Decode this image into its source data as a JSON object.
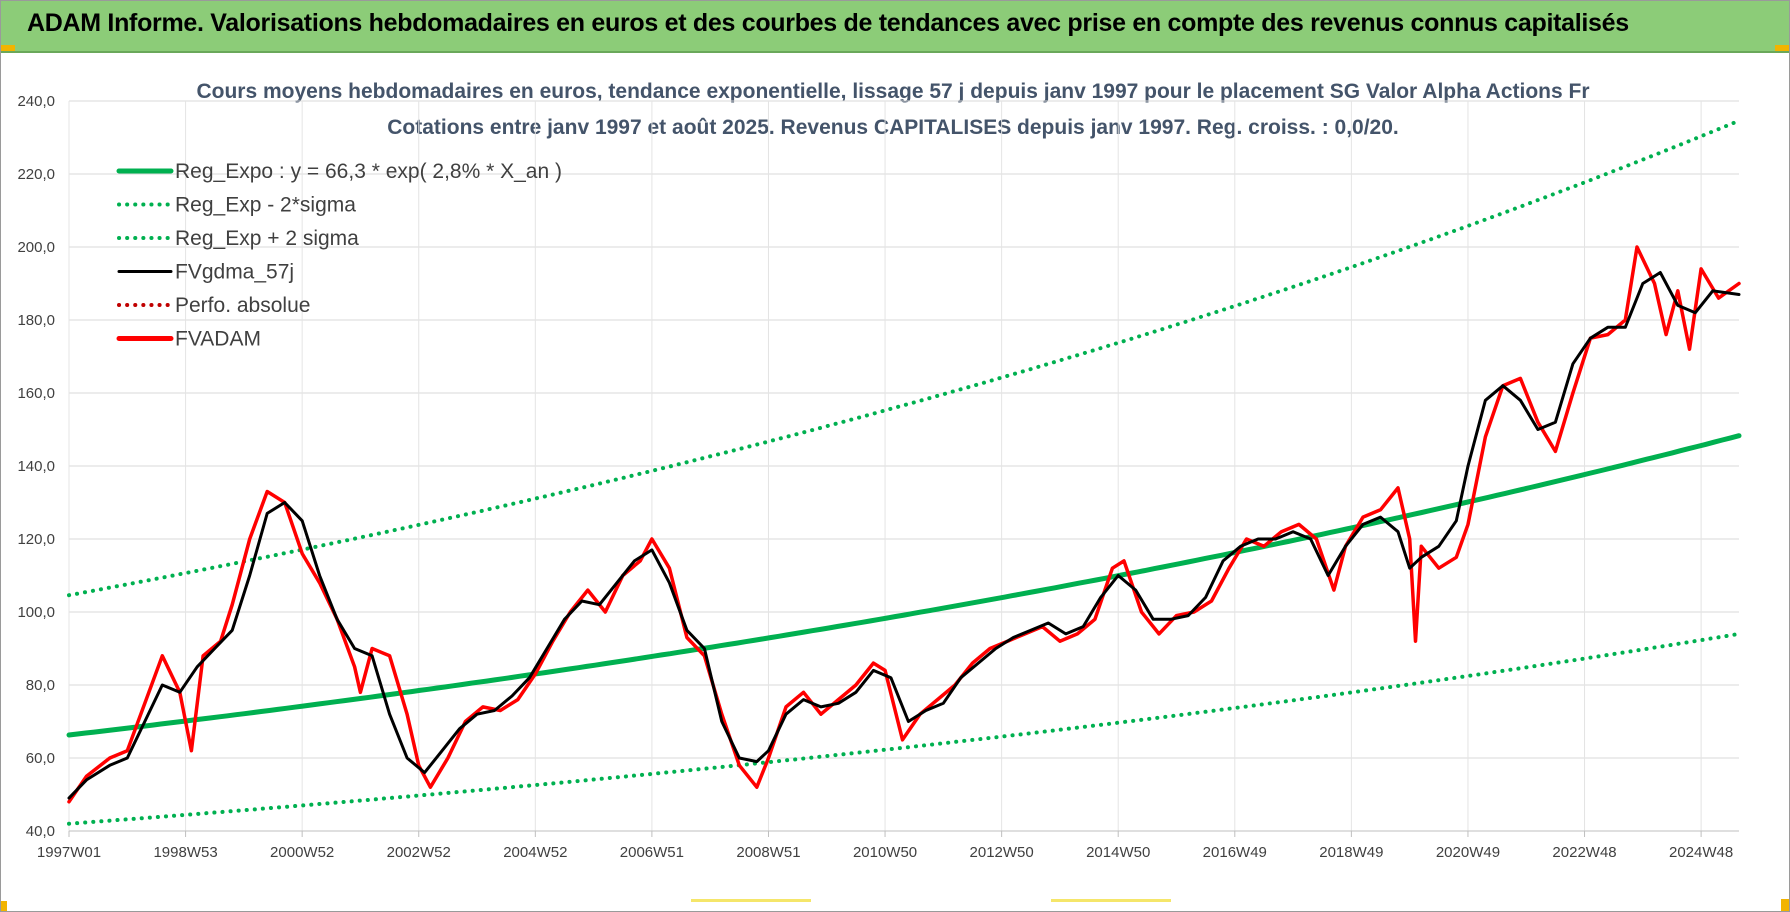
{
  "banner": {
    "title": "ADAM Informe. Valorisations hebdomadaires en euros et des courbes de tendances avec prise en compte des revenus connus capitalisés"
  },
  "colors": {
    "banner": "#8ccc78",
    "reg_expo": "#00b050",
    "fvgdma": "#000000",
    "fvadam": "#ff0000",
    "perfo": "#c00000",
    "accent_corner": "#f2b400"
  },
  "chart_data": {
    "type": "line",
    "title": "Cours moyens hebdomadaires en euros, tendance exponentielle, lissage 57 j depuis janv 1997 pour le placement SG Valor Alpha Actions Fr",
    "subtitle": "Cotations entre janv 1997 et août 2025.  Revenus CAPITALISES depuis janv 1997. Reg. croiss. : 0,0/20.",
    "xlabel": "",
    "ylabel": "",
    "ylim": [
      40,
      240
    ],
    "yticks": [
      "40,0",
      "60,0",
      "80,0",
      "100,0",
      "120,0",
      "140,0",
      "160,0",
      "180,0",
      "200,0",
      "220,0",
      "240,0"
    ],
    "xrange": [
      1997.0,
      2025.65
    ],
    "xticks": [
      {
        "label": "1997W01",
        "x": 1997.0
      },
      {
        "label": "1998W53",
        "x": 1999.0
      },
      {
        "label": "2000W52",
        "x": 2001.0
      },
      {
        "label": "2002W52",
        "x": 2003.0
      },
      {
        "label": "2004W52",
        "x": 2005.0
      },
      {
        "label": "2006W51",
        "x": 2007.0
      },
      {
        "label": "2008W51",
        "x": 2009.0
      },
      {
        "label": "2010W50",
        "x": 2011.0
      },
      {
        "label": "2012W50",
        "x": 2013.0
      },
      {
        "label": "2014W50",
        "x": 2015.0
      },
      {
        "label": "2016W49",
        "x": 2017.0
      },
      {
        "label": "2018W49",
        "x": 2019.0
      },
      {
        "label": "2020W49",
        "x": 2021.0
      },
      {
        "label": "2022W48",
        "x": 2023.0
      },
      {
        "label": "2024W48",
        "x": 2025.0
      }
    ],
    "grid": true,
    "legend_position": "top-left",
    "series": [
      {
        "name": "Reg_Expo : y = 66,3 * exp( 2,8% *  X_an )",
        "style": "solid-thick",
        "color": "#00b050",
        "x": [
          1997.0,
          1999.0,
          2001.0,
          2003.0,
          2005.0,
          2007.0,
          2009.0,
          2011.0,
          2013.0,
          2015.0,
          2017.0,
          2019.0,
          2021.0,
          2023.0,
          2025.65
        ],
        "values": [
          66.3,
          70.1,
          74.2,
          78.5,
          83.0,
          87.8,
          92.9,
          98.2,
          103.9,
          109.9,
          116.2,
          122.9,
          130.0,
          137.5,
          148.3
        ]
      },
      {
        "name": "Reg_Exp - 2*sigma",
        "style": "dotted",
        "color": "#00b050",
        "x": [
          1997.0,
          1999.0,
          2001.0,
          2003.0,
          2005.0,
          2007.0,
          2009.0,
          2011.0,
          2013.0,
          2015.0,
          2017.0,
          2019.0,
          2021.0,
          2023.0,
          2025.65
        ],
        "values": [
          42.0,
          44.4,
          47.0,
          49.7,
          52.5,
          55.6,
          58.8,
          62.2,
          65.7,
          69.5,
          73.5,
          77.8,
          82.3,
          87.0,
          94.0
        ]
      },
      {
        "name": "Reg_Exp + 2 sigma",
        "style": "dotted",
        "color": "#00b050",
        "x": [
          1997.0,
          1999.0,
          2001.0,
          2003.0,
          2005.0,
          2007.0,
          2009.0,
          2011.0,
          2013.0,
          2015.0,
          2017.0,
          2019.0,
          2021.0,
          2023.0,
          2025.65
        ],
        "values": [
          104.6,
          110.6,
          117.0,
          123.8,
          130.9,
          138.5,
          146.5,
          154.9,
          163.8,
          173.3,
          183.3,
          193.9,
          205.1,
          216.9,
          234.6
        ]
      },
      {
        "name": "FVgdma_57j",
        "style": "solid",
        "color": "#000000",
        "x": [
          1997.0,
          1997.3,
          1997.7,
          1998.0,
          1998.3,
          1998.6,
          1998.9,
          1999.2,
          1999.5,
          1999.8,
          2000.1,
          2000.4,
          2000.7,
          2001.0,
          2001.3,
          2001.6,
          2001.9,
          2002.2,
          2002.5,
          2002.8,
          2003.1,
          2003.4,
          2003.7,
          2004.0,
          2004.3,
          2004.6,
          2004.9,
          2005.2,
          2005.5,
          2005.8,
          2006.1,
          2006.4,
          2006.7,
          2007.0,
          2007.3,
          2007.6,
          2007.9,
          2008.2,
          2008.5,
          2008.8,
          2009.0,
          2009.3,
          2009.6,
          2009.9,
          2010.2,
          2010.5,
          2010.8,
          2011.1,
          2011.4,
          2011.7,
          2012.0,
          2012.3,
          2012.6,
          2012.9,
          2013.2,
          2013.5,
          2013.8,
          2014.1,
          2014.4,
          2014.7,
          2015.0,
          2015.3,
          2015.6,
          2015.9,
          2016.2,
          2016.5,
          2016.8,
          2017.1,
          2017.4,
          2017.7,
          2018.0,
          2018.3,
          2018.6,
          2018.9,
          2019.2,
          2019.5,
          2019.8,
          2020.0,
          2020.2,
          2020.5,
          2020.8,
          2021.0,
          2021.3,
          2021.6,
          2021.9,
          2022.2,
          2022.5,
          2022.8,
          2023.1,
          2023.4,
          2023.7,
          2024.0,
          2024.3,
          2024.6,
          2024.9,
          2025.2,
          2025.65
        ],
        "values": [
          49,
          54,
          58,
          60,
          70,
          80,
          78,
          85,
          90,
          95,
          110,
          127,
          130,
          125,
          110,
          98,
          90,
          88,
          72,
          60,
          56,
          62,
          68,
          72,
          73,
          77,
          82,
          90,
          98,
          103,
          102,
          108,
          114,
          117,
          108,
          95,
          90,
          70,
          60,
          59,
          62,
          72,
          76,
          74,
          75,
          78,
          84,
          82,
          70,
          73,
          75,
          82,
          86,
          90,
          93,
          95,
          97,
          94,
          96,
          104,
          110,
          106,
          98,
          98,
          99,
          104,
          114,
          118,
          120,
          120,
          122,
          120,
          110,
          118,
          124,
          126,
          122,
          112,
          115,
          118,
          125,
          140,
          158,
          162,
          158,
          150,
          152,
          168,
          175,
          178,
          178,
          190,
          193,
          184,
          182,
          188,
          187
        ]
      },
      {
        "name": "Perfo. absolue",
        "style": "dotted",
        "color": "#c00000",
        "x": [],
        "values": []
      },
      {
        "name": "FVADAM",
        "style": "solid-thick",
        "color": "#ff0000",
        "x": [
          1997.0,
          1997.3,
          1997.7,
          1998.0,
          1998.3,
          1998.6,
          1998.9,
          1999.1,
          1999.3,
          1999.6,
          1999.8,
          2000.1,
          2000.4,
          2000.7,
          2001.0,
          2001.3,
          2001.6,
          2001.9,
          2002.0,
          2002.2,
          2002.5,
          2002.8,
          2003.0,
          2003.2,
          2003.5,
          2003.8,
          2004.1,
          2004.4,
          2004.7,
          2005.0,
          2005.3,
          2005.6,
          2005.9,
          2006.2,
          2006.5,
          2006.8,
          2007.0,
          2007.3,
          2007.6,
          2007.9,
          2008.2,
          2008.5,
          2008.8,
          2009.0,
          2009.3,
          2009.6,
          2009.9,
          2010.2,
          2010.5,
          2010.8,
          2011.0,
          2011.3,
          2011.6,
          2011.9,
          2012.2,
          2012.5,
          2012.8,
          2013.1,
          2013.4,
          2013.7,
          2014.0,
          2014.3,
          2014.6,
          2014.9,
          2015.1,
          2015.4,
          2015.7,
          2016.0,
          2016.3,
          2016.6,
          2016.9,
          2017.2,
          2017.5,
          2017.8,
          2018.1,
          2018.4,
          2018.7,
          2018.9,
          2019.2,
          2019.5,
          2019.8,
          2020.0,
          2020.1,
          2020.2,
          2020.5,
          2020.8,
          2021.0,
          2021.3,
          2021.6,
          2021.9,
          2022.2,
          2022.5,
          2022.8,
          2023.1,
          2023.4,
          2023.7,
          2023.9,
          2024.2,
          2024.4,
          2024.6,
          2024.8,
          2025.0,
          2025.3,
          2025.65
        ],
        "values": [
          48,
          55,
          60,
          62,
          75,
          88,
          78,
          62,
          88,
          92,
          102,
          120,
          133,
          130,
          116,
          108,
          98,
          85,
          78,
          90,
          88,
          72,
          58,
          52,
          60,
          70,
          74,
          73,
          76,
          83,
          92,
          100,
          106,
          100,
          110,
          114,
          120,
          112,
          93,
          88,
          72,
          58,
          52,
          60,
          74,
          78,
          72,
          76,
          80,
          86,
          84,
          65,
          72,
          76,
          80,
          86,
          90,
          92,
          94,
          96,
          92,
          94,
          98,
          112,
          114,
          100,
          94,
          99,
          100,
          103,
          112,
          120,
          118,
          122,
          124,
          120,
          106,
          118,
          126,
          128,
          134,
          120,
          92,
          118,
          112,
          115,
          124,
          148,
          162,
          164,
          152,
          144,
          160,
          175,
          176,
          180,
          200,
          190,
          176,
          188,
          172,
          194,
          186,
          190
        ]
      }
    ]
  }
}
